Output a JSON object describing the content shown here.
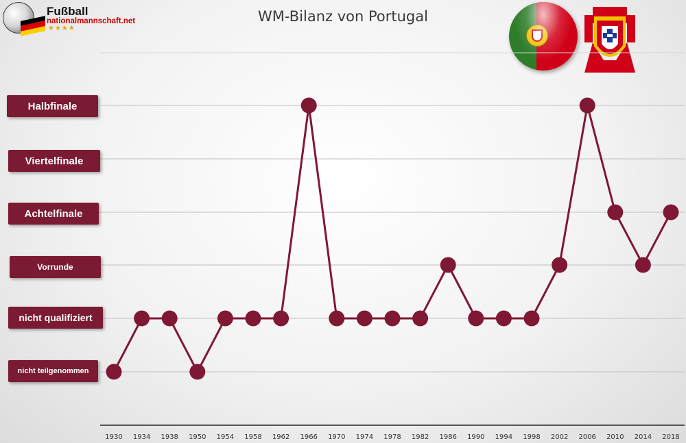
{
  "header": {
    "title": "WM-Bilanz von Portugal",
    "logo_line1": "Fußball",
    "logo_line2": "nationalmannschaft.net",
    "logo_stars": "★★★★"
  },
  "colors": {
    "accent": "#7a1a33",
    "line": "#7f1834",
    "axis": "#555555",
    "flag_green": "#2f7d2a",
    "flag_red": "#d00018"
  },
  "chart_data": {
    "type": "line",
    "title": "WM-Bilanz von Portugal",
    "xlabel": "",
    "ylabel": "",
    "categories": [
      "1930",
      "1934",
      "1938",
      "1950",
      "1954",
      "1958",
      "1962",
      "1966",
      "1970",
      "1974",
      "1978",
      "1982",
      "1986",
      "1990",
      "1994",
      "1998",
      "2002",
      "2006",
      "2010",
      "2014",
      "2018"
    ],
    "y_categories": [
      "nicht teilgenommen",
      "nicht qualifiziert",
      "Vorrunde",
      "Achtelfinale",
      "Viertelfinale",
      "Halbfinale"
    ],
    "series": [
      {
        "values": [
          "nicht teilgenommen",
          "nicht qualifiziert",
          "nicht qualifiziert",
          "nicht teilgenommen",
          "nicht qualifiziert",
          "nicht qualifiziert",
          "nicht qualifiziert",
          "Halbfinale",
          "nicht qualifiziert",
          "nicht qualifiziert",
          "nicht qualifiziert",
          "nicht qualifiziert",
          "Vorrunde",
          "nicht qualifiziert",
          "nicht qualifiziert",
          "nicht qualifiziert",
          "Vorrunde",
          "Halbfinale",
          "Achtelfinale",
          "Vorrunde",
          "Achtelfinale"
        ]
      }
    ],
    "grid": true,
    "legend": "none"
  }
}
